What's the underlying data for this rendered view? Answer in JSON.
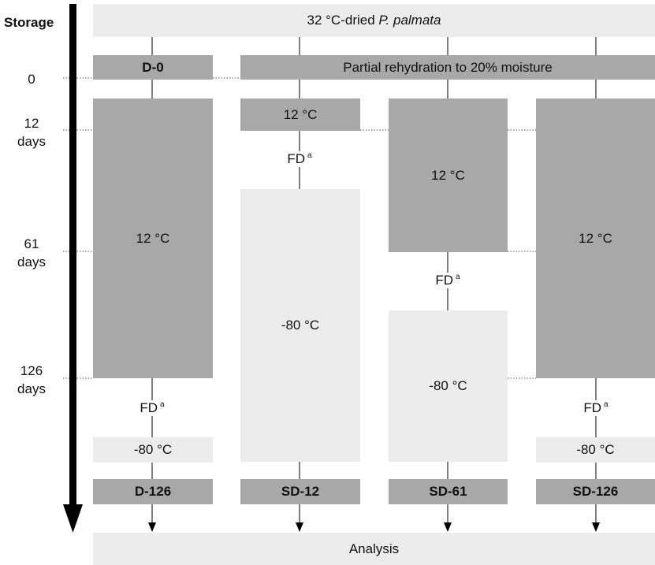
{
  "axis": {
    "title": "Storage",
    "ticks": [
      {
        "label": "0",
        "sub": ""
      },
      {
        "label": "12",
        "sub": "days"
      },
      {
        "label": "61",
        "sub": "days"
      },
      {
        "label": "126",
        "sub": "days"
      }
    ]
  },
  "top": {
    "prefix": "32 °C-dried ",
    "species": "P. palmata"
  },
  "start": {
    "d0": "D-0",
    "rehydration": "Partial rehydration to 20% moisture"
  },
  "blocks": {
    "d_store": "12 °C",
    "sd12_store": "12 °C",
    "sd12_frozen": "-80 °C",
    "sd61_store": "12 °C",
    "sd61_frozen": "-80 °C",
    "sd126_store": "12 °C",
    "d126_frozen": "-80 °C",
    "sd126_frozen": "-80 °C"
  },
  "fd": {
    "label": "FD",
    "note": "a"
  },
  "samples": [
    "D-126",
    "SD-12",
    "SD-61",
    "SD-126"
  ],
  "analysis": "Analysis",
  "colors": {
    "dark": "#a8a8a8",
    "light": "#ececec",
    "arrow": "#000000"
  }
}
